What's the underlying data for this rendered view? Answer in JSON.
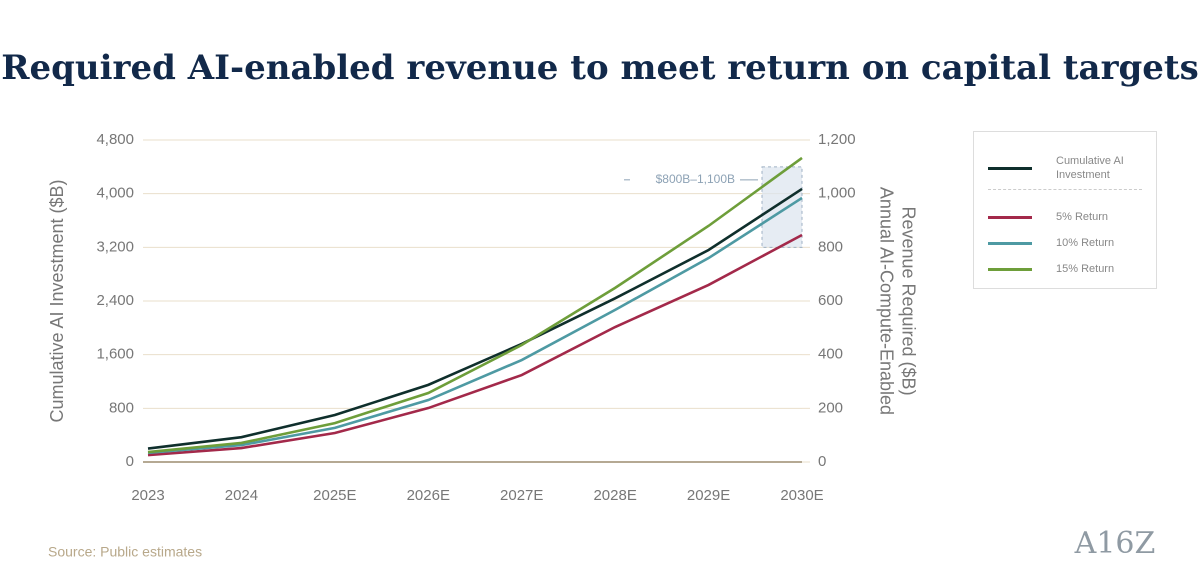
{
  "chart_data": {
    "type": "line",
    "title": "Required AI-enabled revenue to meet return on capital targets",
    "categories": [
      "2023",
      "2024",
      "2025E",
      "2026E",
      "2027E",
      "2028E",
      "2029E",
      "2030E"
    ],
    "series": [
      {
        "name": "Cumulative AI Investment",
        "color": "#0f2f2c",
        "axis": "y",
        "values": [
          200,
          370,
          700,
          1150,
          1760,
          2440,
          3160,
          4070
        ]
      },
      {
        "name": "5% Return",
        "color": "#a3294a",
        "axis": "y2",
        "values": [
          26,
          52,
          108,
          201,
          324,
          503,
          660,
          846
        ]
      },
      {
        "name": "10% Return",
        "color": "#4e9aa3",
        "axis": "y2",
        "values": [
          34,
          63,
          127,
          231,
          380,
          567,
          760,
          984
        ]
      },
      {
        "name": "15% Return",
        "color": "#6e9e3a",
        "axis": "y2",
        "values": [
          37,
          71,
          145,
          257,
          436,
          649,
          880,
          1133
        ]
      }
    ],
    "ylabel": "Cumulative AI Investment ($B)",
    "y2label": [
      "Annual AI-Compute-Enabled",
      "Revenue Required ($B)"
    ],
    "ylim": [
      0,
      4800
    ],
    "yticks": [
      0,
      800,
      {
        "value": 1600,
        "label": "1,600"
      },
      {
        "value": 2400,
        "label": "2,400"
      },
      {
        "value": 3200,
        "label": "3,200"
      },
      {
        "value": 4000,
        "label": "4,000"
      },
      {
        "value": 4800,
        "label": "4,800"
      }
    ],
    "y2lim": [
      0,
      1200
    ],
    "y2ticks": [
      0,
      200,
      400,
      600,
      800,
      {
        "value": 1000,
        "label": "1,000"
      },
      {
        "value": 1200,
        "label": "1,200"
      }
    ],
    "grid": true,
    "highlight": {
      "label": "$800B–1,100B",
      "axis": "y2",
      "range": [
        800,
        1100
      ]
    },
    "legend": "right",
    "source": "Source: Public estimates",
    "logo": "A16Z"
  }
}
